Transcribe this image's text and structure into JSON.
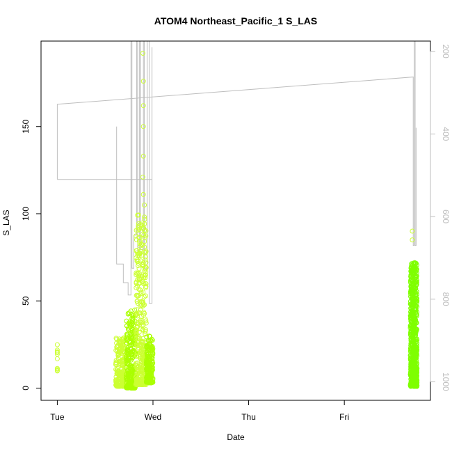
{
  "chart_data": {
    "type": "scatter",
    "title": "ATOM4 Northeast_Pacific_1 S_LAS",
    "xlabel": "Date",
    "ylabel": "S_LAS",
    "x_ticks": [
      "Tue",
      "Wed",
      "Thu",
      "Fri"
    ],
    "xlim_days": [
      -0.17,
      3.9
    ],
    "y_ticks": [
      0,
      50,
      100,
      150
    ],
    "ylim": [
      -7,
      199
    ],
    "y2_ticks": [
      200,
      400,
      600,
      800,
      1000
    ],
    "y2lim": [
      1045,
      175
    ],
    "grid": false,
    "legend": "none",
    "colors": {
      "scatter_light": "#ccff33",
      "scatter_mid": "#aaff00",
      "scatter_dark": "#7fff00",
      "line": "#bebebe",
      "axis": "#000000",
      "axis2": "#bebebe"
    },
    "series": [
      {
        "type": "scatter",
        "segments": [
          {
            "x": [
              0.0,
              0.0
            ],
            "y": [
              9,
              25
            ],
            "n": 10,
            "color": "scatter_light"
          },
          {
            "x": [
              0.61,
              0.72
            ],
            "y": [
              1,
              29
            ],
            "n": 220,
            "color": "scatter_light"
          },
          {
            "x": [
              0.72,
              0.82
            ],
            "y": [
              0,
              45
            ],
            "n": 260,
            "color": "scatter_mid"
          },
          {
            "x": [
              0.82,
              0.93
            ],
            "y": [
              2,
              100
            ],
            "n": 360,
            "color": "scatter_light"
          },
          {
            "x": [
              0.93,
              1.0
            ],
            "y": [
              3,
              30
            ],
            "n": 180,
            "color": "scatter_mid"
          },
          {
            "x": [
              3.69,
              3.76
            ],
            "y": [
              1,
              72
            ],
            "n": 700,
            "color": "scatter_dark"
          }
        ],
        "outliers": [
          {
            "x": 0.895,
            "y": 192
          },
          {
            "x": 0.9,
            "y": 176
          },
          {
            "x": 0.9,
            "y": 162
          },
          {
            "x": 0.9,
            "y": 150
          },
          {
            "x": 0.9,
            "y": 133
          },
          {
            "x": 0.895,
            "y": 121
          },
          {
            "x": 0.9,
            "y": 111
          },
          {
            "x": 0.91,
            "y": 105
          },
          {
            "x": 3.71,
            "y": 90
          },
          {
            "x": 3.71,
            "y": 85
          }
        ]
      },
      {
        "type": "line",
        "axis": "right",
        "points": [
          [
            0.0,
            400
          ],
          [
            0.0,
            510
          ],
          [
            0.0,
            328
          ],
          [
            3.72,
            262
          ],
          [
            3.72,
            670
          ],
          [
            3.73,
            670
          ],
          [
            3.73,
            170
          ],
          [
            3.74,
            170
          ],
          [
            3.74,
            670
          ],
          [
            3.75,
            670
          ],
          [
            3.75,
            385
          ]
        ]
      },
      {
        "type": "line",
        "axis": "right",
        "points": [
          [
            0.62,
            382
          ],
          [
            0.62,
            715
          ],
          [
            0.69,
            715
          ],
          [
            0.69,
            760
          ],
          [
            0.74,
            760
          ],
          [
            0.74,
            790
          ],
          [
            0.77,
            790
          ],
          [
            0.77,
            170
          ],
          [
            0.78,
            170
          ],
          [
            0.78,
            725
          ],
          [
            0.8,
            725
          ],
          [
            0.8,
            645
          ],
          [
            0.83,
            645
          ],
          [
            0.83,
            170
          ],
          [
            0.84,
            170
          ],
          [
            0.84,
            700
          ],
          [
            0.86,
            700
          ],
          [
            0.86,
            170
          ],
          [
            0.87,
            170
          ],
          [
            0.87,
            680
          ],
          [
            0.9,
            680
          ],
          [
            0.9,
            170
          ],
          [
            0.91,
            170
          ],
          [
            0.91,
            725
          ],
          [
            0.94,
            725
          ],
          [
            0.94,
            170
          ],
          [
            0.96,
            170
          ],
          [
            0.96,
            810
          ],
          [
            0.99,
            810
          ],
          [
            0.99,
            190
          ],
          [
            0.99,
            510
          ],
          [
            0.0,
            510
          ]
        ]
      }
    ]
  }
}
